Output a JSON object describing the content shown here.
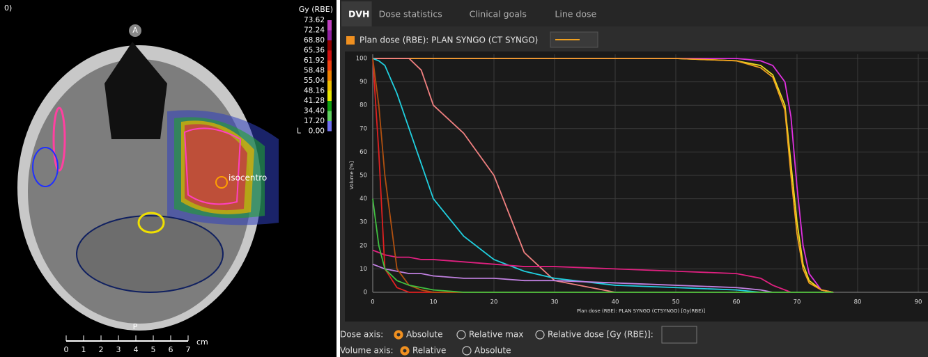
{
  "image": {
    "corner_label": "0)",
    "anterior": "A",
    "posterior": "P",
    "isocenter": "isocentro",
    "scale_unit": "cm",
    "scale_numbers": [
      "0",
      "1",
      "2",
      "3",
      "4",
      "5",
      "6",
      "7"
    ]
  },
  "colorbar": {
    "title": "Gy (RBE)",
    "levels": [
      "73.62",
      "72.24",
      "68.80",
      "65.36",
      "61.92",
      "58.48",
      "55.04",
      "48.16",
      "41.28",
      "34.40",
      "17.20",
      "0.00"
    ],
    "colors": [
      "#c040c0",
      "#9020a0",
      "#900000",
      "#d01010",
      "#f04010",
      "#f08000",
      "#f0c000",
      "#e8e800",
      "#10a010",
      "#60d060",
      "#7070f0",
      "#101090"
    ],
    "low_marker": "L"
  },
  "tabs": [
    "DVH",
    "Dose statistics",
    "Clinical goals",
    "Line dose"
  ],
  "plan_label": "Plan dose (RBE): PLAN SYNGO (CT SYNGO)",
  "dose_axis": {
    "label": "Dose axis:",
    "options": [
      "Absolute",
      "Relative max",
      "Relative dose [Gy (RBE)]:"
    ]
  },
  "volume_axis": {
    "label": "Volume axis:",
    "options": [
      "Relative",
      "Absolute"
    ]
  },
  "chart_data": {
    "type": "line",
    "x_label": "Plan dose (RBE): PLAN SYNGO (CTSYNGO) [Gy(RBE)]",
    "y_label": "Volume [%]",
    "x": [
      0,
      1,
      2,
      4,
      6,
      8,
      10,
      15,
      20,
      25,
      30,
      40,
      50,
      60,
      64,
      66,
      68,
      69,
      70,
      71,
      72,
      74,
      76
    ],
    "series": [
      {
        "color": "#f0e020",
        "values": [
          100,
          100,
          100,
          100,
          100,
          100,
          100,
          100,
          100,
          100,
          100,
          100,
          100,
          99,
          97,
          93,
          80,
          55,
          30,
          12,
          5,
          1,
          0
        ]
      },
      {
        "color": "#e030e0",
        "values": [
          100,
          100,
          100,
          100,
          100,
          100,
          100,
          100,
          100,
          100,
          100,
          100,
          100,
          100,
          99,
          97,
          90,
          75,
          45,
          20,
          8,
          1,
          0
        ]
      },
      {
        "color": "#f0a020",
        "values": [
          100,
          100,
          100,
          100,
          100,
          100,
          100,
          100,
          100,
          100,
          100,
          100,
          100,
          99,
          96,
          92,
          78,
          50,
          25,
          10,
          4,
          1,
          0
        ]
      },
      {
        "color": "#f08080",
        "values": [
          100,
          100,
          100,
          100,
          100,
          95,
          80,
          68,
          50,
          17,
          5,
          0,
          0,
          0,
          0,
          0,
          0,
          0,
          0,
          0,
          0,
          0,
          0
        ]
      },
      {
        "color": "#20d0e0",
        "values": [
          100,
          99,
          97,
          85,
          70,
          55,
          40,
          24,
          14,
          9,
          6,
          3,
          2,
          1,
          0,
          0,
          0,
          0,
          0,
          0,
          0,
          0,
          0
        ]
      },
      {
        "color": "#e02080",
        "values": [
          18,
          17,
          16,
          15,
          15,
          14,
          14,
          13,
          12,
          11,
          11,
          10,
          9,
          8,
          6,
          3,
          1,
          0,
          0,
          0,
          0,
          0,
          0
        ]
      },
      {
        "color": "#c080e0",
        "values": [
          12,
          11,
          10,
          9,
          8,
          8,
          7,
          6,
          6,
          5,
          5,
          4,
          3,
          2,
          1,
          0,
          0,
          0,
          0,
          0,
          0,
          0,
          0
        ]
      },
      {
        "color": "#e02020",
        "values": [
          100,
          60,
          10,
          2,
          0,
          0,
          0,
          0,
          0,
          0,
          0,
          0,
          0,
          0,
          0,
          0,
          0,
          0,
          0,
          0,
          0,
          0,
          0
        ]
      },
      {
        "color": "#b05010",
        "values": [
          100,
          80,
          50,
          10,
          3,
          1,
          0,
          0,
          0,
          0,
          0,
          0,
          0,
          0,
          0,
          0,
          0,
          0,
          0,
          0,
          0,
          0,
          0
        ]
      },
      {
        "color": "#40c040",
        "values": [
          40,
          20,
          10,
          5,
          3,
          2,
          1,
          0,
          0,
          0,
          0,
          0,
          0,
          0,
          0,
          0,
          0,
          0,
          0,
          0,
          0,
          0,
          0
        ]
      }
    ],
    "xlim": [
      0,
      90
    ],
    "ylim": [
      0,
      100
    ],
    "xticks": [
      0,
      10,
      20,
      30,
      40,
      50,
      60,
      70,
      80,
      90
    ],
    "yticks": [
      0,
      10,
      20,
      30,
      40,
      50,
      60,
      70,
      80,
      90,
      100
    ],
    "grid": true
  }
}
